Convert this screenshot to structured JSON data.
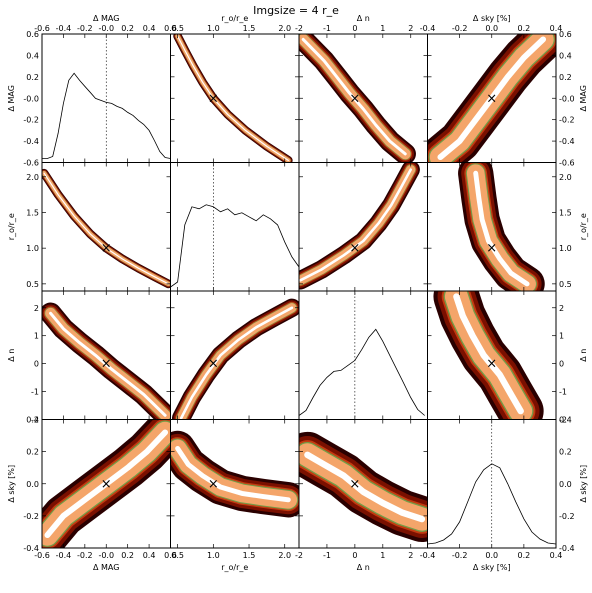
{
  "title": "Imgsize = 4 r_e",
  "chart_data": {
    "type": "corner",
    "title": "Imgsize = 4 r_e",
    "variables": [
      {
        "key": "dmag",
        "label": "Δ MAG",
        "range": [
          -0.6,
          0.6
        ],
        "ticks": [
          -0.6,
          -0.4,
          -0.2,
          0.0,
          0.2,
          0.4,
          0.6
        ],
        "tick_labels": [
          "-0.6",
          "-0.4",
          "-0.2",
          "-0.0",
          "0.2",
          "0.4",
          "0.6"
        ],
        "truth": 0.0
      },
      {
        "key": "re",
        "label": "r_o/r_e",
        "range": [
          0.4,
          2.2
        ],
        "ticks": [
          0.5,
          1.0,
          1.5,
          2.0
        ],
        "tick_labels": [
          "0.5",
          "1.0",
          "1.5",
          "2.0"
        ],
        "truth": 1.0
      },
      {
        "key": "dn",
        "label": "Δ n",
        "range": [
          -2,
          2.6
        ],
        "ticks": [
          -2,
          -1,
          0,
          1,
          2
        ],
        "tick_labels": [
          "-2",
          "-1",
          "0",
          "1",
          "2"
        ],
        "truth": 0.0
      },
      {
        "key": "dsky",
        "label": "Δ sky [%]",
        "range": [
          -0.4,
          0.4
        ],
        "ticks": [
          -0.4,
          -0.2,
          0.0,
          0.2,
          0.4
        ],
        "tick_labels": [
          "-0.4",
          "-0.2",
          "0.0",
          "0.2",
          "0.4"
        ],
        "truth": 0.0
      }
    ],
    "axis_ticks": {
      "re": {
        "ticks": [
          0.5,
          1.0,
          1.5,
          2.0
        ],
        "tick_labels": [
          "0.5",
          "1.0",
          "1.5",
          "2.0"
        ]
      },
      "re_left": {
        "ticks": [
          0.5,
          1.0,
          1.5,
          2.0
        ],
        "tick_labels": [
          "0.5",
          "1.0",
          "1.5",
          "2.0"
        ]
      },
      "dn_left": {
        "ticks": [
          -2,
          -1,
          0,
          1,
          2
        ],
        "tick_labels": [
          "-2",
          "-1",
          "0",
          "1",
          "2"
        ]
      },
      "dmag_left": {
        "ticks": [
          -0.6,
          -0.4,
          -0.2,
          0.0,
          0.2,
          0.4,
          0.6
        ],
        "tick_labels": [
          "-0.6",
          "-0.4",
          "-0.2",
          "-0.0",
          "0.2",
          "0.4",
          "0.6"
        ]
      },
      "dsky_left": {
        "ticks": [
          -0.4,
          -0.2,
          0.0,
          0.2,
          0.4
        ],
        "tick_labels": [
          "-0.4",
          "-0.2",
          "0.0",
          "0.2",
          "0.4"
        ]
      }
    },
    "density_colors": [
      "#2a0000",
      "#7a1000",
      "#c33a10",
      "#e56a30",
      "#f4a56a",
      "#fcd6b0",
      "#ffffff"
    ],
    "contour_color": "#6aa84f",
    "truth_marker": "×",
    "histograms": {
      "dmag": {
        "x": [
          -0.6,
          -0.55,
          -0.5,
          -0.45,
          -0.4,
          -0.35,
          -0.3,
          -0.25,
          -0.2,
          -0.15,
          -0.1,
          -0.05,
          0.0,
          0.05,
          0.1,
          0.15,
          0.2,
          0.25,
          0.3,
          0.35,
          0.4,
          0.45,
          0.5,
          0.55,
          0.6
        ],
        "y": [
          0.0,
          0.0,
          0.02,
          0.25,
          0.55,
          0.78,
          0.85,
          0.78,
          0.72,
          0.66,
          0.6,
          0.58,
          0.56,
          0.55,
          0.52,
          0.5,
          0.46,
          0.43,
          0.38,
          0.34,
          0.28,
          0.18,
          0.07,
          0.01,
          0.0
        ]
      },
      "re": {
        "x": [
          0.4,
          0.5,
          0.6,
          0.7,
          0.8,
          0.9,
          1.0,
          1.1,
          1.2,
          1.3,
          1.4,
          1.5,
          1.6,
          1.7,
          1.8,
          1.9,
          2.0,
          2.1,
          2.2
        ],
        "y": [
          0.0,
          0.05,
          0.62,
          0.8,
          0.78,
          0.82,
          0.8,
          0.75,
          0.78,
          0.72,
          0.74,
          0.7,
          0.66,
          0.72,
          0.68,
          0.62,
          0.45,
          0.3,
          0.2
        ]
      },
      "dn": {
        "x": [
          -2.0,
          -1.75,
          -1.5,
          -1.25,
          -1.0,
          -0.75,
          -0.5,
          -0.25,
          0.0,
          0.25,
          0.5,
          0.75,
          1.0,
          1.25,
          1.5,
          1.75,
          2.0,
          2.25,
          2.5
        ],
        "y": [
          0.0,
          0.05,
          0.18,
          0.3,
          0.38,
          0.44,
          0.45,
          0.5,
          0.55,
          0.66,
          0.78,
          0.86,
          0.74,
          0.6,
          0.46,
          0.32,
          0.18,
          0.06,
          0.0
        ]
      },
      "dsky": {
        "x": [
          -0.4,
          -0.35,
          -0.3,
          -0.25,
          -0.2,
          -0.15,
          -0.1,
          -0.05,
          0.0,
          0.05,
          0.1,
          0.15,
          0.2,
          0.25,
          0.3,
          0.35,
          0.4
        ],
        "y": [
          0.0,
          0.01,
          0.04,
          0.1,
          0.22,
          0.42,
          0.62,
          0.74,
          0.8,
          0.76,
          0.6,
          0.42,
          0.25,
          0.12,
          0.05,
          0.01,
          0.0
        ]
      }
    },
    "ridges": {
      "dmag|re": {
        "points": [
          [
            -0.58,
            2.05
          ],
          [
            -0.45,
            1.75
          ],
          [
            -0.3,
            1.45
          ],
          [
            -0.15,
            1.2
          ],
          [
            0.0,
            1.0
          ],
          [
            0.15,
            0.85
          ],
          [
            0.3,
            0.72
          ],
          [
            0.45,
            0.6
          ],
          [
            0.58,
            0.5
          ]
        ],
        "width": 0.055
      },
      "re|dn": {
        "points": [
          [
            0.55,
            -1.95
          ],
          [
            0.7,
            -1.2
          ],
          [
            0.9,
            -0.4
          ],
          [
            1.1,
            0.3
          ],
          [
            1.35,
            0.85
          ],
          [
            1.6,
            1.3
          ],
          [
            1.85,
            1.65
          ],
          [
            2.1,
            2.0
          ]
        ],
        "width": 0.3
      },
      "dmag|dn": {
        "points": [
          [
            -0.52,
            1.8
          ],
          [
            -0.4,
            1.25
          ],
          [
            -0.25,
            0.75
          ],
          [
            -0.1,
            0.3
          ],
          [
            0.05,
            -0.2
          ],
          [
            0.2,
            -0.65
          ],
          [
            0.35,
            -1.1
          ],
          [
            0.55,
            -1.85
          ]
        ],
        "width": 0.35
      },
      "re|dsky": {
        "points": [
          [
            0.5,
            0.22
          ],
          [
            0.65,
            0.12
          ],
          [
            0.85,
            0.05
          ],
          [
            1.1,
            -0.02
          ],
          [
            1.4,
            -0.06
          ],
          [
            1.7,
            -0.08
          ],
          [
            2.05,
            -0.1
          ]
        ],
        "width": 0.1
      },
      "dmag|dsky": {
        "points": [
          [
            -0.55,
            -0.32
          ],
          [
            -0.4,
            -0.2
          ],
          [
            -0.2,
            -0.1
          ],
          [
            0.0,
            0.0
          ],
          [
            0.2,
            0.1
          ],
          [
            0.38,
            0.2
          ],
          [
            0.55,
            0.32
          ]
        ],
        "width": 0.12
      },
      "dn|dsky": {
        "points": [
          [
            -1.7,
            0.18
          ],
          [
            -1.1,
            0.12
          ],
          [
            -0.4,
            0.05
          ],
          [
            0.3,
            -0.05
          ],
          [
            1.0,
            -0.12
          ],
          [
            1.7,
            -0.18
          ],
          [
            2.4,
            -0.22
          ]
        ],
        "width": 0.13
      }
    }
  }
}
